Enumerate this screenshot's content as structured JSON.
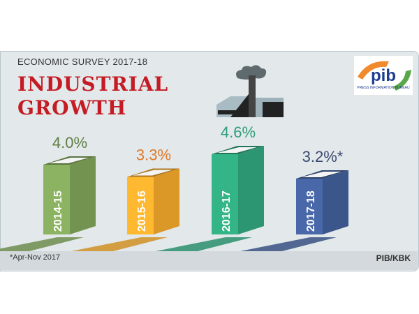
{
  "header": {
    "subtitle": "ECONOMIC SURVEY 2017-18",
    "title_line1": "INDUSTRIAL",
    "title_line2": "GROWTH"
  },
  "logo": {
    "text": "pib",
    "caption": "PRESS INFORMATION BUREAU"
  },
  "footer": {
    "note": "*Apr-Nov 2017",
    "credit": "PIB/KBK"
  },
  "chart_data": {
    "type": "bar",
    "categories": [
      "2014-15",
      "2015-16",
      "2016-17",
      "2017-18"
    ],
    "values": [
      4.0,
      3.3,
      4.6,
      3.2
    ],
    "labels": [
      "4.0%",
      "3.3%",
      "4.6%",
      "3.2%*"
    ],
    "colors": [
      "#7a9c55",
      "#e8a12a",
      "#2e9e77",
      "#3f5b93"
    ],
    "label_colors": [
      "#5f7f45",
      "#e07a2a",
      "#2e9e77",
      "#3a4a70"
    ],
    "title": "INDUSTRIAL GROWTH"
  }
}
